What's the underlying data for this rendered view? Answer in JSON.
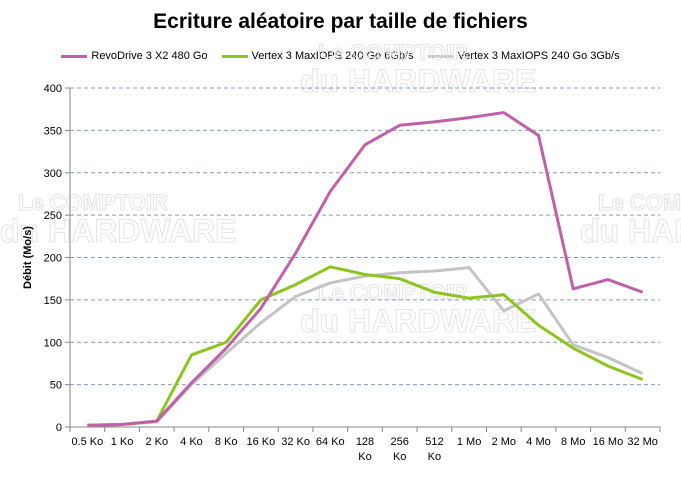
{
  "chart_data": {
    "type": "line",
    "title": "Ecriture aléatoire par taille de fichiers",
    "xlabel": "",
    "ylabel": "Débit (Mo/s)",
    "ylim": [
      0,
      400
    ],
    "yticks": [
      0,
      50,
      100,
      150,
      200,
      250,
      300,
      350,
      400
    ],
    "grid": true,
    "legend_position": "top",
    "categories": [
      "0.5 Ko",
      "1 Ko",
      "2 Ko",
      "4 Ko",
      "8 Ko",
      "16 Ko",
      "32 Ko",
      "64 Ko",
      "128 Ko",
      "256 Ko",
      "512 Ko",
      "1 Mo",
      "2 Mo",
      "4 Mo",
      "8 Mo",
      "16 Mo",
      "32 Mo"
    ],
    "series": [
      {
        "name": "RevoDrive 3 X2 480 Go",
        "color": "#c060a8",
        "values": [
          2,
          3,
          7,
          52,
          93,
          140,
          205,
          278,
          333,
          356,
          360,
          365,
          371,
          344,
          163,
          174,
          159
        ]
      },
      {
        "name": "Vertex 3 MaxIOPS 240 Go 6Gb/s",
        "color": "#8cc420",
        "values": [
          2,
          3,
          7,
          85,
          100,
          150,
          168,
          189,
          180,
          175,
          159,
          152,
          156,
          120,
          93,
          72,
          56
        ]
      },
      {
        "name": "Vertex 3 MaxIOPS 240 Go 3Gb/s",
        "color": "#c4c4c4",
        "values": [
          2,
          3,
          6,
          50,
          87,
          123,
          154,
          170,
          178,
          182,
          184,
          188,
          137,
          157,
          97,
          82,
          63
        ]
      }
    ]
  },
  "watermark": "Le COMPTOIR du HARDWARE"
}
